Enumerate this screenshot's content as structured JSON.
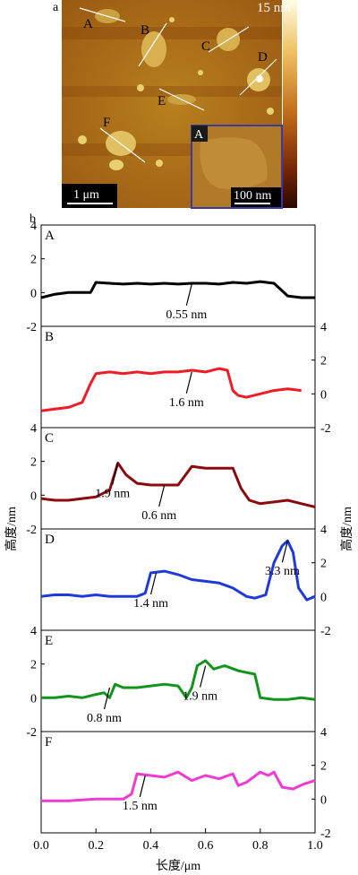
{
  "panel_a": {
    "label": "a",
    "colorbar_max": "15 nm",
    "scale_bar": "1 μm",
    "inset_tag": "A",
    "inset_scale_bar": "100 nm",
    "markers": [
      "A",
      "B",
      "C",
      "D",
      "E",
      "F"
    ]
  },
  "panel_b": {
    "label": "b",
    "y_axis_title": "高度/nm",
    "x_axis_title": "长度/μm"
  },
  "chart_data": {
    "type": "line",
    "xlabel": "长度/μm",
    "ylabel": "高度/nm",
    "xlim": [
      0.0,
      1.0
    ],
    "ylim": [
      -2,
      4
    ],
    "x_ticks": [
      "0.0",
      "0.2",
      "0.4",
      "0.6",
      "0.8",
      "1.0"
    ],
    "y_ticks": [
      "-2",
      "0",
      "2",
      "4"
    ],
    "series": [
      {
        "name": "A",
        "color": "#000000",
        "axis_side": "left",
        "points": [
          [
            0.0,
            -0.3
          ],
          [
            0.05,
            -0.1
          ],
          [
            0.1,
            0.0
          ],
          [
            0.15,
            0.0
          ],
          [
            0.18,
            0.0
          ],
          [
            0.2,
            0.6
          ],
          [
            0.25,
            0.55
          ],
          [
            0.3,
            0.5
          ],
          [
            0.35,
            0.55
          ],
          [
            0.4,
            0.5
          ],
          [
            0.45,
            0.55
          ],
          [
            0.5,
            0.5
          ],
          [
            0.55,
            0.55
          ],
          [
            0.6,
            0.55
          ],
          [
            0.65,
            0.5
          ],
          [
            0.7,
            0.6
          ],
          [
            0.75,
            0.55
          ],
          [
            0.8,
            0.65
          ],
          [
            0.85,
            0.55
          ],
          [
            0.88,
            0.1
          ],
          [
            0.9,
            -0.2
          ],
          [
            0.95,
            -0.3
          ],
          [
            1.0,
            -0.3
          ]
        ],
        "annotations": [
          {
            "text": "0.55 nm",
            "x": 0.55,
            "y": 0.5
          }
        ]
      },
      {
        "name": "B",
        "color": "#ee1c25",
        "axis_side": "right",
        "points": [
          [
            0.0,
            -1.0
          ],
          [
            0.05,
            -0.9
          ],
          [
            0.1,
            -0.8
          ],
          [
            0.15,
            -0.5
          ],
          [
            0.18,
            0.6
          ],
          [
            0.2,
            1.2
          ],
          [
            0.25,
            1.3
          ],
          [
            0.3,
            1.2
          ],
          [
            0.35,
            1.3
          ],
          [
            0.4,
            1.2
          ],
          [
            0.45,
            1.3
          ],
          [
            0.5,
            1.3
          ],
          [
            0.55,
            1.4
          ],
          [
            0.6,
            1.3
          ],
          [
            0.65,
            1.5
          ],
          [
            0.68,
            1.4
          ],
          [
            0.7,
            0.2
          ],
          [
            0.72,
            -0.1
          ],
          [
            0.75,
            -0.2
          ],
          [
            0.8,
            0.0
          ],
          [
            0.85,
            0.2
          ],
          [
            0.9,
            0.3
          ],
          [
            0.95,
            0.2
          ]
        ],
        "annotations": [
          {
            "text": "1.6 nm",
            "x": 0.55,
            "y": 1.3
          }
        ]
      },
      {
        "name": "C",
        "color": "#8b0a0e",
        "axis_side": "left",
        "points": [
          [
            0.0,
            -0.2
          ],
          [
            0.05,
            -0.3
          ],
          [
            0.1,
            -0.3
          ],
          [
            0.15,
            -0.2
          ],
          [
            0.2,
            -0.1
          ],
          [
            0.25,
            0.3
          ],
          [
            0.28,
            1.9
          ],
          [
            0.31,
            1.2
          ],
          [
            0.35,
            0.7
          ],
          [
            0.4,
            0.6
          ],
          [
            0.45,
            0.6
          ],
          [
            0.5,
            0.6
          ],
          [
            0.55,
            1.7
          ],
          [
            0.6,
            1.6
          ],
          [
            0.65,
            1.6
          ],
          [
            0.7,
            1.6
          ],
          [
            0.73,
            0.4
          ],
          [
            0.76,
            -0.3
          ],
          [
            0.8,
            -0.5
          ],
          [
            0.85,
            -0.4
          ],
          [
            0.9,
            -0.3
          ],
          [
            0.95,
            -0.5
          ],
          [
            1.0,
            -0.7
          ]
        ],
        "annotations": [
          {
            "text": "1.9 nm",
            "x": 0.28,
            "y": 1.9
          },
          {
            "text": "0.6 nm",
            "x": 0.45,
            "y": 0.6
          }
        ]
      },
      {
        "name": "D",
        "color": "#1f3ad6",
        "axis_side": "right",
        "points": [
          [
            0.0,
            0.0
          ],
          [
            0.05,
            0.1
          ],
          [
            0.1,
            0.1
          ],
          [
            0.15,
            0.0
          ],
          [
            0.2,
            0.1
          ],
          [
            0.25,
            0.0
          ],
          [
            0.3,
            0.0
          ],
          [
            0.35,
            0.0
          ],
          [
            0.38,
            0.2
          ],
          [
            0.4,
            1.4
          ],
          [
            0.45,
            1.5
          ],
          [
            0.5,
            1.3
          ],
          [
            0.55,
            1.0
          ],
          [
            0.6,
            0.9
          ],
          [
            0.65,
            0.8
          ],
          [
            0.7,
            0.5
          ],
          [
            0.75,
            0.0
          ],
          [
            0.78,
            -0.1
          ],
          [
            0.82,
            0.1
          ],
          [
            0.85,
            2.0
          ],
          [
            0.88,
            3.0
          ],
          [
            0.9,
            3.3
          ],
          [
            0.92,
            2.6
          ],
          [
            0.94,
            0.5
          ],
          [
            0.97,
            -0.2
          ],
          [
            1.0,
            0.0
          ]
        ],
        "annotations": [
          {
            "text": "1.4 nm",
            "x": 0.42,
            "y": 1.4
          },
          {
            "text": "3.3 nm",
            "x": 0.9,
            "y": 3.3
          }
        ]
      },
      {
        "name": "E",
        "color": "#14941d",
        "axis_side": "left",
        "points": [
          [
            0.0,
            0.0
          ],
          [
            0.05,
            0.0
          ],
          [
            0.1,
            0.1
          ],
          [
            0.15,
            0.0
          ],
          [
            0.2,
            0.2
          ],
          [
            0.23,
            0.3
          ],
          [
            0.25,
            0.0
          ],
          [
            0.27,
            0.8
          ],
          [
            0.3,
            0.6
          ],
          [
            0.35,
            0.6
          ],
          [
            0.4,
            0.7
          ],
          [
            0.45,
            0.8
          ],
          [
            0.5,
            0.7
          ],
          [
            0.53,
            0.0
          ],
          [
            0.55,
            0.6
          ],
          [
            0.57,
            1.9
          ],
          [
            0.6,
            2.2
          ],
          [
            0.63,
            1.7
          ],
          [
            0.67,
            1.9
          ],
          [
            0.72,
            1.6
          ],
          [
            0.75,
            1.5
          ],
          [
            0.78,
            1.4
          ],
          [
            0.8,
            0.0
          ],
          [
            0.85,
            -0.1
          ],
          [
            0.9,
            -0.1
          ],
          [
            0.95,
            0.0
          ],
          [
            1.0,
            -0.1
          ]
        ],
        "annotations": [
          {
            "text": "0.8 nm",
            "x": 0.25,
            "y": 0.6
          },
          {
            "text": "1.9 nm",
            "x": 0.6,
            "y": 1.9
          }
        ]
      },
      {
        "name": "F",
        "color": "#ee3bd2",
        "axis_side": "right",
        "points": [
          [
            0.0,
            -0.1
          ],
          [
            0.05,
            -0.1
          ],
          [
            0.1,
            -0.1
          ],
          [
            0.15,
            -0.05
          ],
          [
            0.2,
            0.0
          ],
          [
            0.25,
            0.0
          ],
          [
            0.3,
            0.0
          ],
          [
            0.33,
            0.3
          ],
          [
            0.35,
            1.5
          ],
          [
            0.4,
            1.4
          ],
          [
            0.45,
            1.3
          ],
          [
            0.5,
            1.6
          ],
          [
            0.55,
            1.1
          ],
          [
            0.6,
            1.4
          ],
          [
            0.65,
            1.2
          ],
          [
            0.7,
            1.5
          ],
          [
            0.72,
            0.8
          ],
          [
            0.75,
            1.0
          ],
          [
            0.8,
            1.6
          ],
          [
            0.83,
            1.4
          ],
          [
            0.85,
            1.6
          ],
          [
            0.88,
            0.7
          ],
          [
            0.92,
            0.6
          ],
          [
            0.96,
            0.9
          ],
          [
            1.0,
            1.1
          ]
        ],
        "annotations": [
          {
            "text": "1.5 nm",
            "x": 0.38,
            "y": 1.4
          }
        ]
      }
    ]
  }
}
